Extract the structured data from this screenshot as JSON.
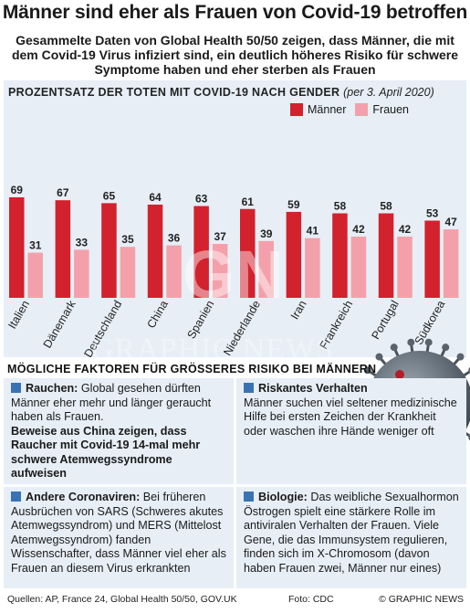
{
  "title": "Männer sind eher als Frauen von Covid-19 betroffen",
  "subtitle": "Gesammelte Daten von Global Health 50/50 zeigen, dass Männer, die mit dem Covid-19 Virus infiziert sind, ein deutlich höheres Risiko für schwere Symptome haben und eher sterben als Frauen",
  "chart_heading": "PROZENTSATZ DER TOTEN MIT COVID-19 NACH GENDER",
  "chart_heading_date": "(per 3. April 2020)",
  "colors": {
    "maenner": "#d2222d",
    "frauen": "#f4a0aa",
    "panel": "#e7eef6",
    "accent": "#3a73b3"
  },
  "chart_data": {
    "type": "bar",
    "categories": [
      "Italien",
      "Dänemark",
      "Deutschland",
      "China",
      "Spanien",
      "Niederlande",
      "Iran",
      "Frankreich",
      "Portugal",
      "Südkorea"
    ],
    "series": [
      {
        "name": "Männer",
        "values": [
          69,
          67,
          65,
          64,
          63,
          61,
          59,
          58,
          58,
          53
        ]
      },
      {
        "name": "Frauen",
        "values": [
          31,
          33,
          35,
          36,
          37,
          39,
          41,
          42,
          42,
          47
        ]
      }
    ],
    "ylim": [
      0,
      70
    ],
    "legend": "top-right",
    "grid": false
  },
  "factors_title": "MÖGLICHE FAKTOREN FÜR GRÖSSERES RISIKO BEI MÄNNERN",
  "factors": {
    "rauchen": {
      "head": "Rauchen:",
      "text": "Global gesehen dürften Männer eher mehr und länger geraucht haben als Frauen.",
      "strong": "Beweise aus China zeigen, dass Raucher mit Covid-19 14-mal mehr schwere Atemwegssyndrome aufweisen"
    },
    "coronaviren": {
      "head": "Andere Coronaviren:",
      "text": "Bei früheren Ausbrüchen von SARS (Schweres akutes Atemwegssyndrom) und MERS (Mittelost Atemwegssyndrom) fanden Wissenschafter, dass Männer viel eher als Frauen an diesem Virus erkrankten"
    },
    "verhalten": {
      "head": "Riskantes Verhalten",
      "text": "Männer suchen viel seltener medizinische Hilfe bei ersten Zeichen der Krankheit oder waschen ihre Hände weniger oft"
    },
    "biologie": {
      "head": "Biologie:",
      "text": "Das weibliche Sexualhormon Östrogen spielt eine stärkere Rolle im antiviralen Verhalten der Frauen. Viele Gene, die das Immunsystem regulieren, finden sich im X-Chromosom (davon haben Frauen zwei, Männer nur eines)"
    }
  },
  "footer": {
    "sources": "Quellen: AP, France 24, Global Health 50/50, GOV.UK",
    "photo": "Foto: CDC",
    "credit": "© GRAPHIC NEWS"
  },
  "watermark": {
    "logo": "GN",
    "text": "GRAPHIC NEWS"
  }
}
